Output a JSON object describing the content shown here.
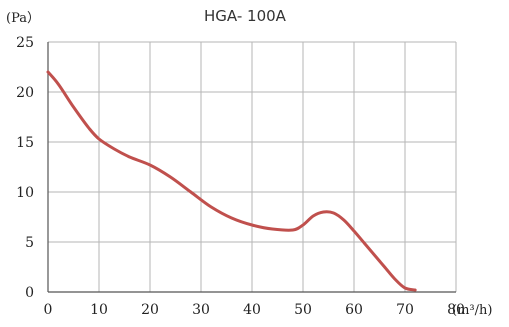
{
  "chart_data": {
    "type": "line",
    "title": "HGA- 100A",
    "ylabel": "(Pa）",
    "xlabel": "(m³/h)",
    "xlim": [
      0,
      80
    ],
    "ylim": [
      0,
      25
    ],
    "x_ticks": [
      0,
      10,
      20,
      30,
      40,
      50,
      60,
      70,
      80
    ],
    "y_ticks": [
      0,
      5,
      10,
      15,
      20,
      25
    ],
    "grid": true,
    "series": [
      {
        "x": [
          0,
          2,
          5,
          8,
          10,
          13,
          16,
          20,
          24,
          28,
          32,
          36,
          40,
          44,
          48,
          50,
          52,
          54,
          56,
          58,
          60,
          62,
          64,
          66,
          68,
          70,
          72
        ],
        "y": [
          22.0,
          20.8,
          18.5,
          16.4,
          15.3,
          14.3,
          13.5,
          12.7,
          11.5,
          10.0,
          8.5,
          7.4,
          6.7,
          6.3,
          6.2,
          6.7,
          7.6,
          8.0,
          7.9,
          7.2,
          6.1,
          4.9,
          3.7,
          2.5,
          1.3,
          0.4,
          0.2
        ],
        "color": "#c0504d"
      }
    ]
  }
}
